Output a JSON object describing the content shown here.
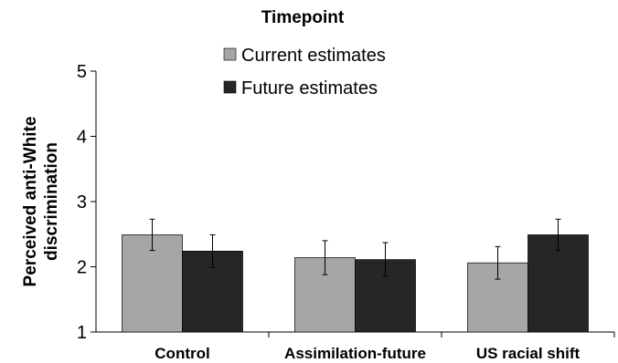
{
  "chart_data": {
    "type": "bar",
    "title": "",
    "legend_title": "Timepoint",
    "ylabel_lines": [
      "Perceived anti-White",
      "discrimination"
    ],
    "xlabel": "",
    "categories": [
      "Control",
      "Assimilation-future",
      "US racial shift"
    ],
    "ylim": [
      1,
      5
    ],
    "yticks": [
      1,
      2,
      3,
      4,
      5
    ],
    "grid": false,
    "legend_position": "top-center",
    "series": [
      {
        "name": "Current estimates",
        "color": "#a6a6a6",
        "values": [
          2.49,
          2.14,
          2.06
        ],
        "errors": [
          0.24,
          0.26,
          0.25
        ]
      },
      {
        "name": "Future estimates",
        "color": "#262626",
        "values": [
          2.24,
          2.11,
          2.49
        ],
        "errors": [
          0.25,
          0.26,
          0.24
        ]
      }
    ]
  }
}
